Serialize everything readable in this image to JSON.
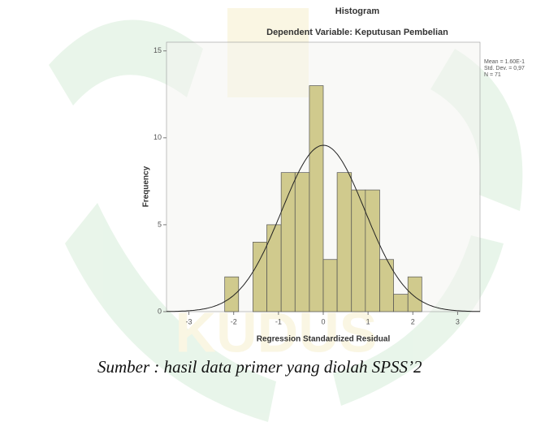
{
  "chart_data": {
    "type": "histogram",
    "title": "Histogram",
    "subtitle": "Dependent Variable: Keputusan Pembelian",
    "x_label": "Regression Standardized Residual",
    "y_label": "Frequency",
    "stats": [
      "Mean = 1.60E-1",
      "Std. Dev. = 0,97",
      "N = 71"
    ],
    "bins": [
      -2.2,
      -1.89,
      -1.57,
      -1.26,
      -0.94,
      -0.63,
      -0.31,
      0,
      0.31,
      0.63,
      0.94,
      1.26,
      1.57,
      1.89,
      2.2
    ],
    "values": [
      2,
      0,
      4,
      5,
      8,
      8,
      13,
      3,
      8,
      7,
      7,
      3,
      1,
      2
    ],
    "color": "#c9c27a",
    "xlim": [
      -3.5,
      3.5
    ],
    "xticks": [
      -3,
      -2,
      -1,
      0,
      1,
      2,
      3
    ],
    "ylim": [
      0,
      15.5
    ],
    "yticks": [
      0,
      5,
      10,
      15
    ],
    "normal_curve": true,
    "caption": "Sumber : hasil data primer yang diolah SPSS’2"
  }
}
